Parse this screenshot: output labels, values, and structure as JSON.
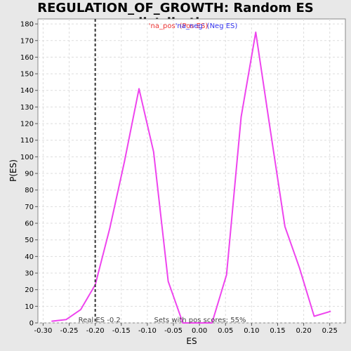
{
  "chart_data": {
    "type": "line",
    "title": "REGULATION_OF_GROWTH: Random ES distribution",
    "xlabel": "ES",
    "ylabel": "P(ES)",
    "xlim": [
      -0.31,
      0.28
    ],
    "ylim": [
      0,
      183
    ],
    "x_ticks": [
      "-0.30",
      "-0.25",
      "-0.20",
      "-0.15",
      "-0.10",
      "-0.05",
      "0.00",
      "0.05",
      "0.10",
      "0.15",
      "0.20",
      "0.25"
    ],
    "y_ticks": [
      "0",
      "10",
      "20",
      "30",
      "40",
      "50",
      "60",
      "70",
      "80",
      "90",
      "100",
      "110",
      "120",
      "130",
      "140",
      "150",
      "160",
      "170",
      "180"
    ],
    "grid": true,
    "series": [
      {
        "x": [
          -0.284,
          -0.256,
          -0.228,
          -0.2,
          -0.172,
          -0.144,
          -0.116,
          -0.088,
          -0.06,
          -0.032,
          -0.004,
          0.024,
          0.052,
          0.08,
          0.108,
          0.136,
          0.164,
          0.192,
          0.22,
          0.252
        ],
        "y": [
          1,
          2,
          8,
          23,
          57,
          97,
          141,
          103,
          25,
          0,
          0,
          0,
          29,
          124,
          175,
          116,
          58,
          33,
          4,
          7
        ]
      }
    ],
    "real_es_line": {
      "x": -0.2,
      "label": "Real ES -0.2"
    },
    "legend": {
      "pos_label": "'na_pos' (Pos ES)",
      "neg_label": "'na_neg' (Neg ES)",
      "placement": "top-center"
    },
    "footer_annotation": "Sets with pos scores: 55%",
    "colors": {
      "line": "#ee44ee",
      "pos_legend": "#ee3333",
      "neg_legend": "#3333ee",
      "plot_bg": "#ffffff",
      "page_bg": "#e8e8e8",
      "grid": "#dddddd"
    }
  }
}
